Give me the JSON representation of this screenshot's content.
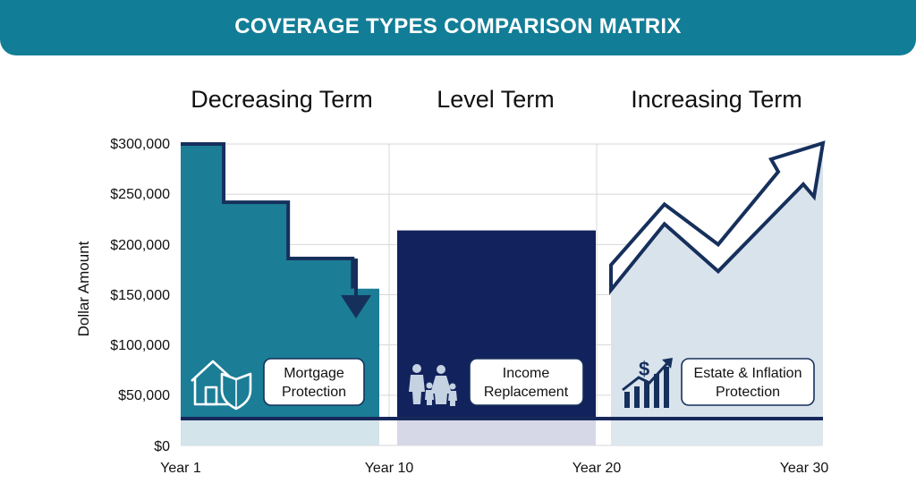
{
  "banner": {
    "title": "COVERAGE TYPES COMPARISON MATRIX"
  },
  "chart_data": {
    "type": "area",
    "ylabel": "Dollar Amount",
    "ylim": [
      0,
      300000
    ],
    "yticks": [
      "$0",
      "$50,000",
      "$100,000",
      "$150,000",
      "$200,000",
      "$250,000",
      "$300,000"
    ],
    "xticks": [
      "Year 1",
      "Year 10",
      "Year 20",
      "Year 30"
    ],
    "panels": [
      {
        "title": "Decreasing Term",
        "label": [
          "Mortgage",
          "Protection"
        ],
        "icon": "house-shield-icon",
        "x": [
          1,
          3,
          3,
          6,
          6,
          9,
          9,
          10
        ],
        "y": [
          300000,
          300000,
          242000,
          242000,
          186000,
          186000,
          156000,
          156000
        ]
      },
      {
        "title": "Level Term",
        "label": [
          "Income",
          "Replacement"
        ],
        "icon": "family-icon",
        "x": [
          11,
          20
        ],
        "y": [
          214000,
          214000
        ]
      },
      {
        "title": "Increasing Term",
        "label": [
          "Estate & Inflation",
          "Protection"
        ],
        "icon": "dollar-growth-chart-icon",
        "x": [
          20,
          23.5,
          26,
          30
        ],
        "y": [
          160000,
          240000,
          200000,
          300000
        ]
      }
    ],
    "colors": {
      "decreasing": "#1b7d96",
      "level": "#12225c",
      "increasing_fill": "#d9e3ec",
      "outline": "#16305c",
      "baseline": "#17285a",
      "grid": "#d7d7d7"
    },
    "grid": true
  }
}
